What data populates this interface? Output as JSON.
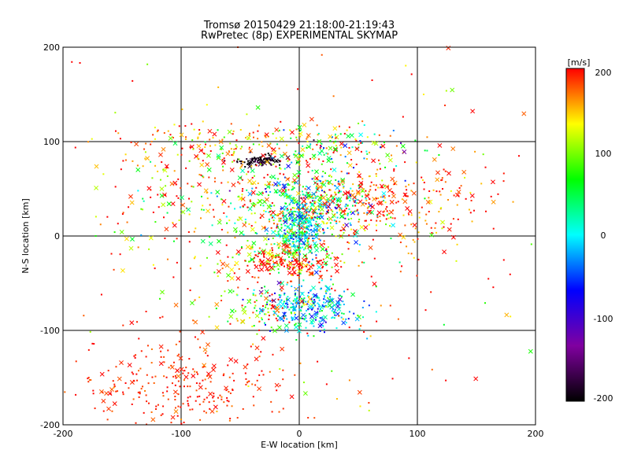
{
  "title_line1": "Tromsø 20150429 21:18:00-21:19:43",
  "title_line2": "RwPretec (8p) EXPERIMENTAL SKYMAP",
  "chart_data": {
    "type": "scatter",
    "title": "Tromsø 20150429 21:18:00-21:19:43 / RwPretec (8p) EXPERIMENTAL SKYMAP",
    "xlabel": "E-W location [km]",
    "ylabel": "N-S location [km]",
    "xlim": [
      -200,
      200
    ],
    "ylim": [
      -200,
      200
    ],
    "xticks": [
      "-200",
      "-100",
      "0",
      "100",
      "200"
    ],
    "yticks": [
      "-200",
      "-100",
      "0",
      "100",
      "200"
    ],
    "grid": true,
    "marker_styles": [
      "x",
      "dot"
    ],
    "colorbar": {
      "label": "[m/s]",
      "range": [
        -200,
        200
      ],
      "ticks": [
        "-200",
        "-100",
        "0",
        "100",
        "200"
      ],
      "colormap": [
        "#000000",
        "#8000a0",
        "#0000ff",
        "#00ffff",
        "#00ff00",
        "#ffff00",
        "#ff0000"
      ]
    },
    "clusters": [
      {
        "cx": 10,
        "cy": 35,
        "sx": 32,
        "sy": 18,
        "n": 520,
        "v": 70,
        "vs": 90
      },
      {
        "cx": 0,
        "cy": 5,
        "sx": 9,
        "sy": 14,
        "n": 220,
        "v": 0,
        "vs": 40
      },
      {
        "cx": 10,
        "cy": -75,
        "sx": 20,
        "sy": 13,
        "n": 260,
        "v": -10,
        "vs": 50
      },
      {
        "cx": -30,
        "cy": -75,
        "sx": 18,
        "sy": 12,
        "n": 110,
        "v": 100,
        "vs": 110
      },
      {
        "cx": -32,
        "cy": 80,
        "sx": 10,
        "sy": 3,
        "n": 90,
        "v": -190,
        "vs": 15
      },
      {
        "cx": -100,
        "cy": -160,
        "sx": 45,
        "sy": 25,
        "n": 290,
        "v": 190,
        "vs": 12
      },
      {
        "cx": 75,
        "cy": 35,
        "sx": 40,
        "sy": 20,
        "n": 230,
        "v": 185,
        "vs": 25
      },
      {
        "cx": -85,
        "cy": 40,
        "sx": 45,
        "sy": 30,
        "n": 190,
        "v": 140,
        "vs": 70
      },
      {
        "cx": -10,
        "cy": -20,
        "sx": 28,
        "sy": 10,
        "n": 170,
        "v": 130,
        "vs": 80
      },
      {
        "cx": -50,
        "cy": 100,
        "sx": 45,
        "sy": 12,
        "n": 140,
        "v": 170,
        "vs": 40
      },
      {
        "cx": 30,
        "cy": 95,
        "sx": 35,
        "sy": 12,
        "n": 110,
        "v": 90,
        "vs": 90
      },
      {
        "cx": -5,
        "cy": -30,
        "sx": 22,
        "sy": 8,
        "n": 110,
        "v": 200,
        "vs": 10
      },
      {
        "cx": 0,
        "cy": 0,
        "sx": 110,
        "sy": 110,
        "n": 320,
        "v": 175,
        "vs": 60
      }
    ]
  }
}
